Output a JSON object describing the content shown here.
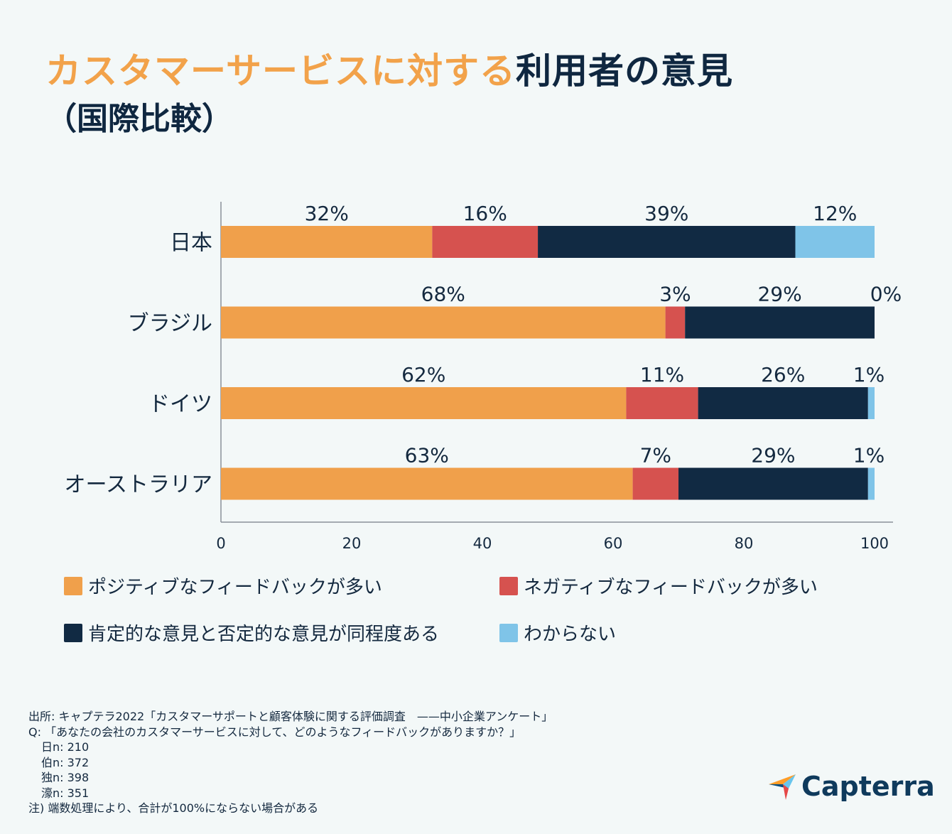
{
  "title": {
    "highlight": "カスタマーサービスに対する",
    "rest": "利用者の意見",
    "subtitle": "（国際比較）"
  },
  "chart_data": {
    "type": "bar",
    "orientation": "horizontal",
    "stacked": true,
    "categories": [
      "日本",
      "ブラジル",
      "ドイツ",
      "オーストラリア"
    ],
    "series": [
      {
        "name": "ポジティブなフィードバックが多い",
        "color": "#f0a04b",
        "values": [
          32,
          68,
          62,
          63
        ],
        "labels": [
          "32%",
          "68%",
          "62%",
          "63%"
        ]
      },
      {
        "name": "ネガティブなフィードバックが多い",
        "color": "#d6524f",
        "values": [
          16,
          3,
          11,
          7
        ],
        "labels": [
          "16%",
          "3%",
          "11%",
          "7%"
        ]
      },
      {
        "name": "肯定的な意見と否定的な意見が同程度ある",
        "color": "#112a43",
        "values": [
          39,
          29,
          26,
          29
        ],
        "labels": [
          "39%",
          "29%",
          "26%",
          "29%"
        ]
      },
      {
        "name": "わからない",
        "color": "#7fc4e8",
        "values": [
          12,
          0,
          1,
          1
        ],
        "labels": [
          "12%",
          "0%",
          "1%",
          "1%"
        ]
      }
    ],
    "xlim": [
      0,
      100
    ],
    "xticks": [
      "0",
      "20",
      "40",
      "60",
      "80",
      "100"
    ],
    "grid": false,
    "legend_position": "bottom"
  },
  "source": {
    "line1": "出所: キャプテラ2022「カスタマーサポートと顧客体験に関する評価調査　——中小企業アンケート」",
    "line2": "Q: 「あなたの会社のカスタマーサービスに対して、どのようなフィードバックがありますか？」",
    "n_jp": "日n: 210",
    "n_br": "伯n: 372",
    "n_de": "独n: 398",
    "n_au": "濠n: 351",
    "note": "注) 端数処理により、合計が100%にならない場合がある"
  },
  "brand": {
    "name": "Capterra",
    "icon": "capterra-arrow-icon"
  }
}
